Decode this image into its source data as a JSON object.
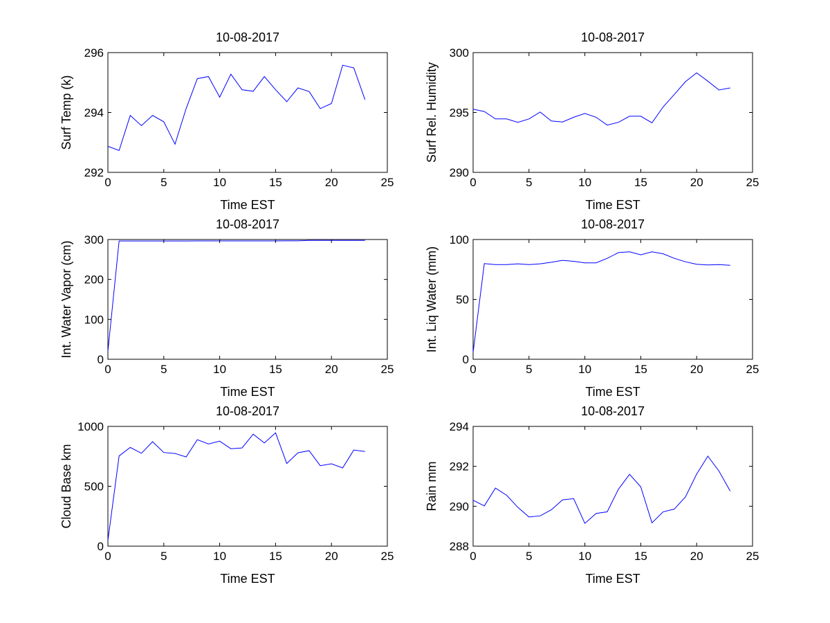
{
  "chart_data": [
    {
      "type": "line",
      "title": "10-08-2017",
      "xlabel": "Time EST",
      "ylabel": "Surf Temp (k)",
      "xlim": [
        0,
        25
      ],
      "ylim": [
        292,
        296
      ],
      "xticks": [
        0,
        5,
        10,
        15,
        20,
        25
      ],
      "yticks": [
        292,
        294,
        296
      ],
      "x": [
        0,
        1,
        2,
        3,
        4,
        5,
        6,
        7,
        8,
        9,
        10,
        11,
        12,
        13,
        14,
        15,
        16,
        17,
        18,
        19,
        20,
        21,
        22,
        23
      ],
      "values": [
        292.87,
        292.73,
        293.9,
        293.56,
        293.9,
        293.69,
        292.94,
        294.13,
        295.13,
        295.2,
        294.51,
        295.28,
        294.76,
        294.71,
        295.2,
        294.76,
        294.36,
        294.82,
        294.7,
        294.13,
        294.3,
        295.58,
        295.49,
        294.43
      ],
      "color": "#0000ff",
      "grid": false
    },
    {
      "type": "line",
      "title": "10-08-2017",
      "xlabel": "Time EST",
      "ylabel": "Surf Rel. Humidity",
      "xlim": [
        0,
        25
      ],
      "ylim": [
        290,
        300
      ],
      "xticks": [
        0,
        5,
        10,
        15,
        20,
        25
      ],
      "yticks": [
        290,
        295,
        300
      ],
      "x": [
        0,
        1,
        2,
        3,
        4,
        5,
        6,
        7,
        8,
        9,
        10,
        11,
        12,
        13,
        14,
        15,
        16,
        17,
        18,
        19,
        20,
        21,
        22,
        23
      ],
      "values": [
        295.27,
        295.08,
        294.46,
        294.46,
        294.18,
        294.46,
        295.04,
        294.29,
        294.21,
        294.6,
        294.92,
        294.6,
        293.95,
        294.18,
        294.69,
        294.69,
        294.14,
        295.46,
        296.51,
        297.57,
        298.31,
        297.61,
        296.88,
        297.05
      ],
      "color": "#0000ff",
      "grid": false
    },
    {
      "type": "line",
      "title": "10-08-2017",
      "xlabel": "Time EST",
      "ylabel": "Int. Water Vapor (cm)",
      "xlim": [
        0,
        25
      ],
      "ylim": [
        0,
        300
      ],
      "xticks": [
        0,
        5,
        10,
        15,
        20,
        25
      ],
      "yticks": [
        0,
        100,
        200,
        300
      ],
      "x": [
        0,
        1,
        2,
        3,
        4,
        5,
        6,
        7,
        8,
        9,
        10,
        11,
        12,
        13,
        14,
        15,
        16,
        17,
        18,
        19,
        20,
        21,
        22,
        23
      ],
      "values": [
        20,
        296.3,
        296.3,
        296.3,
        296.4,
        296.4,
        296.4,
        296.4,
        296.5,
        296.5,
        296.5,
        296.5,
        296.6,
        296.6,
        296.6,
        296.6,
        296.7,
        296.7,
        298.0,
        298.0,
        298.0,
        298.0,
        298.0,
        298.0
      ],
      "color": "#0000ff",
      "grid": false
    },
    {
      "type": "line",
      "title": "10-08-2017",
      "xlabel": "Time EST",
      "ylabel": "Int. Liq Water (mm)",
      "xlim": [
        0,
        25
      ],
      "ylim": [
        0,
        100
      ],
      "xticks": [
        0,
        5,
        10,
        15,
        20,
        25
      ],
      "yticks": [
        0,
        50,
        100
      ],
      "x": [
        0,
        1,
        2,
        3,
        4,
        5,
        6,
        7,
        8,
        9,
        10,
        11,
        12,
        13,
        14,
        15,
        16,
        17,
        18,
        19,
        20,
        21,
        22,
        23
      ],
      "values": [
        5.7,
        79.9,
        79.1,
        79.1,
        79.7,
        79.1,
        79.7,
        81.0,
        82.6,
        81.8,
        80.5,
        80.5,
        84.3,
        89.1,
        89.7,
        87.2,
        89.7,
        88.1,
        84.3,
        81.4,
        79.3,
        78.7,
        79.1,
        78.5
      ],
      "color": "#0000ff",
      "grid": false
    },
    {
      "type": "line",
      "title": "10-08-2017",
      "xlabel": "Time EST",
      "ylabel": "Cloud Base km",
      "xlim": [
        0,
        25
      ],
      "ylim": [
        0,
        1000
      ],
      "xticks": [
        0,
        5,
        10,
        15,
        20,
        25
      ],
      "yticks": [
        0,
        500,
        1000
      ],
      "x": [
        0,
        1,
        2,
        3,
        4,
        5,
        6,
        7,
        8,
        9,
        10,
        11,
        12,
        13,
        14,
        15,
        16,
        17,
        18,
        19,
        20,
        21,
        22,
        23
      ],
      "values": [
        48,
        753,
        824,
        776,
        872,
        782,
        774,
        745,
        889,
        854,
        877,
        814,
        820,
        935,
        862,
        946,
        690,
        780,
        797,
        672,
        688,
        653,
        803,
        791
      ],
      "color": "#0000ff",
      "grid": false
    },
    {
      "type": "line",
      "title": "10-08-2017",
      "xlabel": "Time EST",
      "ylabel": "Rain mm",
      "xlim": [
        0,
        25
      ],
      "ylim": [
        288,
        294
      ],
      "xticks": [
        0,
        5,
        10,
        15,
        20,
        25
      ],
      "yticks": [
        288,
        290,
        292,
        294
      ],
      "x": [
        0,
        1,
        2,
        3,
        4,
        5,
        6,
        7,
        8,
        9,
        10,
        11,
        12,
        13,
        14,
        15,
        16,
        17,
        18,
        19,
        20,
        21,
        22,
        23
      ],
      "values": [
        290.3,
        290.02,
        290.91,
        290.55,
        289.95,
        289.46,
        289.52,
        289.82,
        290.32,
        290.38,
        289.14,
        289.64,
        289.72,
        290.85,
        291.6,
        290.97,
        289.17,
        289.72,
        289.86,
        290.47,
        291.61,
        292.51,
        291.76,
        290.76
      ],
      "color": "#0000ff",
      "grid": false
    }
  ]
}
